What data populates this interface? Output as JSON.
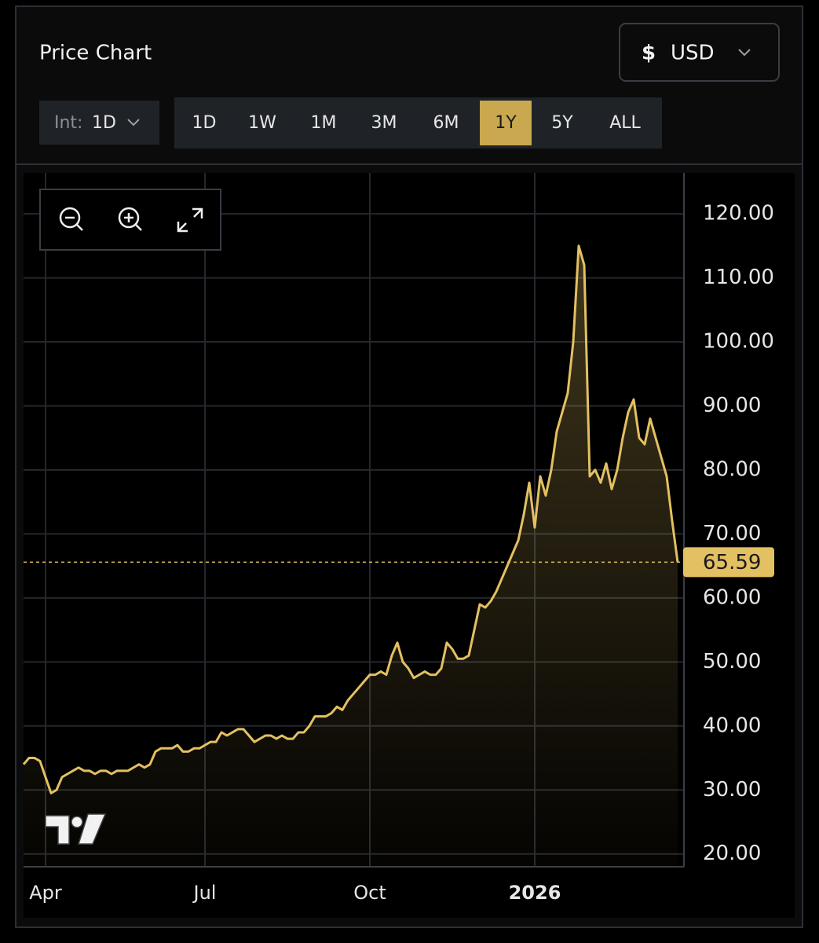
{
  "header": {
    "title": "Price Chart",
    "currency_symbol": "$",
    "currency": "USD",
    "interval_label": "Int:",
    "interval": "1D",
    "ranges": [
      "1D",
      "1W",
      "1M",
      "3M",
      "6M",
      "1Y",
      "5Y",
      "ALL"
    ],
    "active_range": "1Y"
  },
  "chart_data": {
    "type": "line",
    "color": "#e3c062",
    "grid": true,
    "categories": [
      null,
      null,
      null,
      null,
      "Apr",
      null,
      null,
      null,
      null,
      null,
      null,
      null,
      null,
      null,
      null,
      null,
      null,
      null,
      null,
      null,
      null,
      null,
      null,
      null,
      null,
      null,
      null,
      null,
      null,
      null,
      null,
      null,
      null,
      "Jul",
      null,
      null,
      null,
      null,
      null,
      null,
      null,
      null,
      null,
      null,
      null,
      null,
      null,
      null,
      null,
      null,
      null,
      null,
      null,
      null,
      null,
      null,
      null,
      null,
      null,
      null,
      null,
      null,
      null,
      "Oct",
      null,
      null,
      null,
      null,
      null,
      null,
      null,
      null,
      null,
      null,
      null,
      null,
      null,
      null,
      null,
      null,
      null,
      null,
      null,
      null,
      null,
      null,
      null,
      null,
      null,
      null,
      null,
      null,
      null,
      "2026",
      null,
      null,
      null,
      null,
      null,
      null,
      null,
      null,
      null,
      null,
      null,
      null,
      null,
      null,
      null,
      null,
      null,
      null,
      null,
      null,
      null,
      null,
      null,
      null,
      null,
      null
    ],
    "values": [
      34,
      35,
      35,
      34.5,
      32,
      29.5,
      30,
      32,
      32.5,
      33,
      33.5,
      33,
      33,
      32.5,
      33,
      33,
      32.5,
      33,
      33,
      33,
      33.5,
      34,
      33.5,
      34,
      36,
      36.5,
      36.5,
      36.5,
      37,
      36,
      36,
      36.5,
      36.5,
      37,
      37.5,
      37.5,
      39,
      38.5,
      39,
      39.5,
      39.5,
      38.5,
      37.5,
      38,
      38.5,
      38.5,
      38,
      38.5,
      38,
      38,
      39,
      39,
      40,
      41.5,
      41.5,
      41.5,
      42,
      43,
      42.5,
      44,
      45,
      46,
      47,
      48,
      48,
      48.5,
      48,
      51,
      53,
      50,
      49,
      47.5,
      48,
      48.5,
      48,
      48,
      49,
      53,
      52,
      50.5,
      50.5,
      51,
      55,
      59,
      58.5,
      59.5,
      61,
      63,
      65,
      67,
      69,
      73,
      78,
      71,
      79,
      76,
      80,
      86,
      89,
      92,
      100,
      115,
      112,
      79,
      80,
      78,
      81,
      77,
      80,
      85,
      89,
      91,
      85,
      84,
      88,
      85,
      82,
      79,
      72,
      65.59
    ],
    "value_labels": [
      null,
      null,
      null,
      null,
      null,
      null,
      null,
      null,
      null,
      null,
      null,
      null,
      null,
      null,
      null,
      null,
      null,
      null,
      null,
      null,
      null,
      null,
      null,
      null,
      null,
      null,
      null,
      null,
      null,
      null,
      null,
      null,
      null,
      null,
      null,
      null,
      null,
      null,
      null,
      null,
      null,
      null,
      null,
      null,
      null,
      null,
      null,
      null,
      null,
      null,
      null,
      null,
      null,
      null,
      null,
      null,
      null,
      null,
      null,
      null,
      null,
      null,
      null,
      null,
      null,
      null,
      null,
      null,
      null,
      null,
      null,
      null,
      null,
      null,
      null,
      null,
      null,
      null,
      null,
      null,
      null,
      null,
      null,
      null,
      null,
      null,
      null,
      null,
      null,
      null,
      null,
      null,
      null,
      null,
      null,
      null,
      null,
      null,
      null,
      null,
      null,
      null,
      null,
      null,
      null,
      null,
      null,
      null,
      null,
      null,
      null,
      null,
      null,
      null,
      null,
      null,
      null,
      null,
      null,
      "65.59"
    ],
    "ylim": [
      18,
      126.4
    ],
    "yticks": [
      {
        "value": 20,
        "label": "20.00"
      },
      {
        "value": 30,
        "label": "30.00"
      },
      {
        "value": 40,
        "label": "40.00"
      },
      {
        "value": 50,
        "label": "50.00"
      },
      {
        "value": 60,
        "label": "60.00"
      },
      {
        "value": 70,
        "label": "70.00"
      },
      {
        "value": 80,
        "label": "80.00"
      },
      {
        "value": 90,
        "label": "90.00"
      },
      {
        "value": 100,
        "label": "100.00"
      },
      {
        "value": 110,
        "label": "110.00"
      },
      {
        "value": 120,
        "label": "120.00"
      }
    ]
  }
}
